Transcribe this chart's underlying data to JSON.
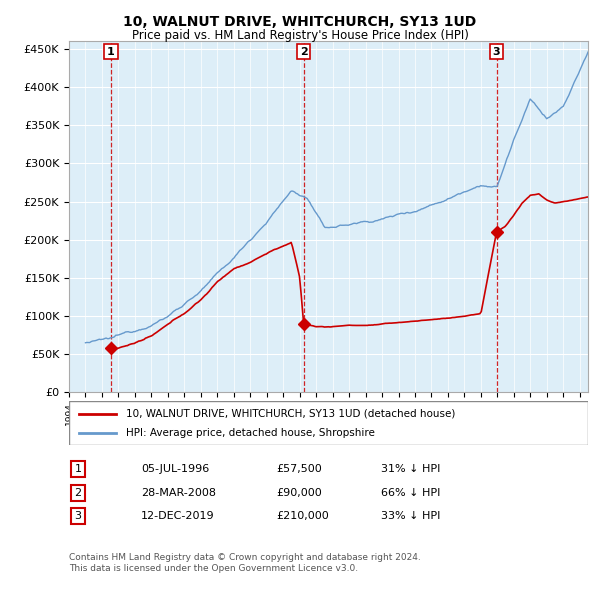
{
  "title": "10, WALNUT DRIVE, WHITCHURCH, SY13 1UD",
  "subtitle": "Price paid vs. HM Land Registry's House Price Index (HPI)",
  "hpi_color": "#6699cc",
  "price_color": "#cc0000",
  "plot_bg_color": "#ddeeff",
  "ylim": [
    0,
    460000
  ],
  "yticks": [
    0,
    50000,
    100000,
    150000,
    200000,
    250000,
    300000,
    350000,
    400000,
    450000
  ],
  "ytick_labels": [
    "£0",
    "£50K",
    "£100K",
    "£150K",
    "£200K",
    "£250K",
    "£300K",
    "£350K",
    "£400K",
    "£450K"
  ],
  "xlim_start": 1994.0,
  "xlim_end": 2025.5,
  "purchases": [
    {
      "date": 1996.54,
      "price": 57500,
      "label": "1"
    },
    {
      "date": 2008.24,
      "price": 90000,
      "label": "2"
    },
    {
      "date": 2019.95,
      "price": 210000,
      "label": "3"
    }
  ],
  "purchase_info": [
    {
      "label": "1",
      "date_str": "05-JUL-1996",
      "price_str": "£57,500",
      "pct": "31% ↓ HPI"
    },
    {
      "label": "2",
      "date_str": "28-MAR-2008",
      "price_str": "£90,000",
      "pct": "66% ↓ HPI"
    },
    {
      "label": "3",
      "date_str": "12-DEC-2019",
      "price_str": "£210,000",
      "pct": "33% ↓ HPI"
    }
  ],
  "legend_line1": "10, WALNUT DRIVE, WHITCHURCH, SY13 1UD (detached house)",
  "legend_line2": "HPI: Average price, detached house, Shropshire",
  "footer1": "Contains HM Land Registry data © Crown copyright and database right 2024.",
  "footer2": "This data is licensed under the Open Government Licence v3.0."
}
